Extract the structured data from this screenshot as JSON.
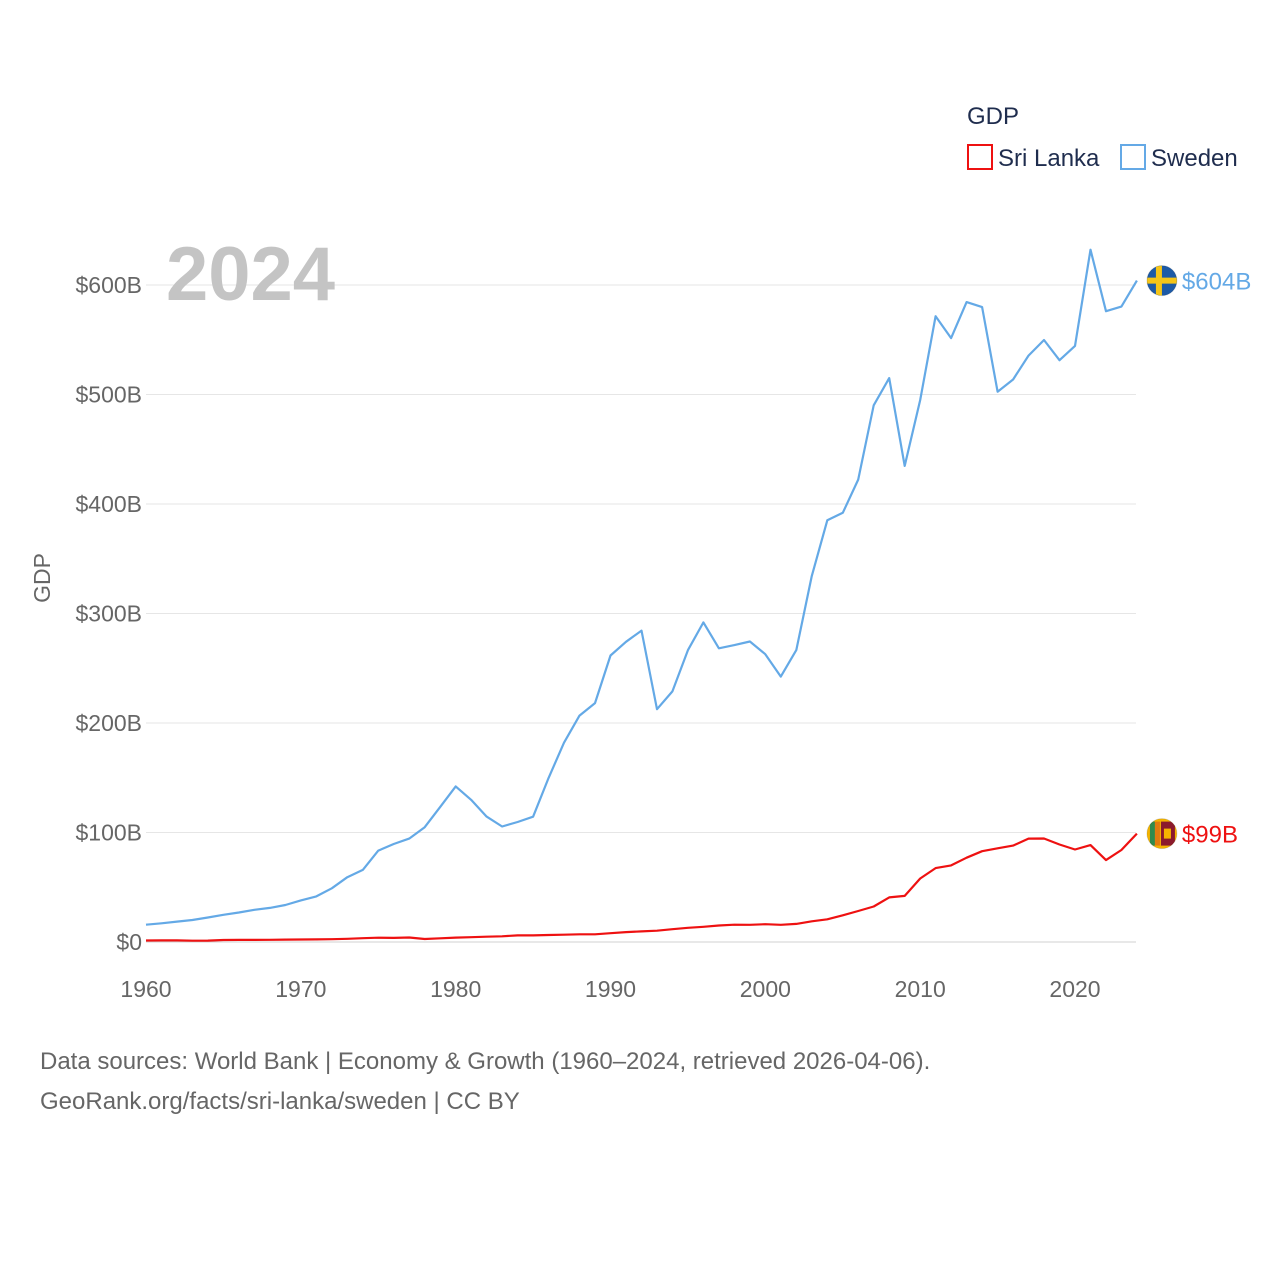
{
  "chart_data": {
    "type": "line",
    "title": "GDP",
    "ylabel": "GDP",
    "xlabel": "",
    "year_label": "2024",
    "xlim": [
      1960,
      2024
    ],
    "ylim": [
      0,
      650
    ],
    "x_ticks": [
      "1960",
      "1970",
      "1980",
      "1990",
      "2000",
      "2010",
      "2020"
    ],
    "y_ticks": [
      {
        "value": 0,
        "label": "$0"
      },
      {
        "value": 100,
        "label": "$100B"
      },
      {
        "value": 200,
        "label": "$200B"
      },
      {
        "value": 300,
        "label": "$300B"
      },
      {
        "value": 400,
        "label": "$400B"
      },
      {
        "value": 500,
        "label": "$500B"
      },
      {
        "value": 600,
        "label": "$600B"
      }
    ],
    "grid": true,
    "legend_position": "top-right",
    "x": [
      1960,
      1961,
      1962,
      1963,
      1964,
      1965,
      1966,
      1967,
      1968,
      1969,
      1970,
      1971,
      1972,
      1973,
      1974,
      1975,
      1976,
      1977,
      1978,
      1979,
      1980,
      1981,
      1982,
      1983,
      1984,
      1985,
      1986,
      1987,
      1988,
      1989,
      1990,
      1991,
      1992,
      1993,
      1994,
      1995,
      1996,
      1997,
      1998,
      1999,
      2000,
      2001,
      2002,
      2003,
      2004,
      2005,
      2006,
      2007,
      2008,
      2009,
      2010,
      2011,
      2012,
      2013,
      2014,
      2015,
      2016,
      2017,
      2018,
      2019,
      2020,
      2021,
      2022,
      2023,
      2024
    ],
    "series": [
      {
        "name": "Sri Lanka",
        "color": "#ee1111",
        "end_label": "$99B",
        "flag": "sri-lanka",
        "values": [
          1.4,
          1.5,
          1.5,
          1.2,
          1.3,
          1.8,
          1.9,
          1.9,
          2.0,
          2.2,
          2.3,
          2.4,
          2.6,
          2.9,
          3.5,
          3.9,
          3.7,
          4.1,
          2.7,
          3.4,
          4.0,
          4.4,
          4.8,
          5.2,
          6.0,
          6.0,
          6.4,
          6.7,
          7.0,
          7.0,
          8.0,
          9.0,
          9.7,
          10.3,
          11.7,
          13.0,
          13.9,
          15.1,
          15.8,
          15.7,
          16.3,
          15.7,
          16.5,
          18.9,
          20.7,
          24.4,
          28.3,
          32.4,
          40.7,
          42.1,
          58.0,
          67.5,
          70.0,
          77.0,
          82.9,
          85.6,
          88.0,
          94.4,
          94.5,
          89.0,
          84.5,
          88.5,
          74.8,
          84.0,
          99.0
        ]
      },
      {
        "name": "Sweden",
        "color": "#64a9e6",
        "end_label": "$604B",
        "flag": "sweden",
        "values": [
          15.8,
          17.1,
          18.6,
          20.1,
          22.4,
          24.8,
          26.9,
          29.4,
          31.1,
          33.8,
          38.0,
          41.6,
          49.0,
          59.2,
          65.8,
          83.5,
          89.5,
          94.4,
          104.8,
          123.4,
          142.1,
          129.9,
          114.5,
          105.5,
          109.6,
          114.4,
          149.9,
          182.0,
          206.8,
          218.2,
          261.6,
          274.2,
          284.4,
          212.6,
          228.9,
          266.5,
          291.9,
          268.2,
          271.1,
          274.4,
          262.8,
          242.4,
          266.6,
          334.3,
          385.1,
          392.0,
          422.3,
          490.1,
          515.0,
          434.8,
          495.0,
          571.5,
          551.5,
          584.4,
          579.8,
          502.6,
          513.7,
          535.5,
          549.8,
          531.3,
          544.4,
          632.2,
          576.1,
          580.3,
          604.0
        ]
      }
    ]
  },
  "legend": {
    "title": "GDP",
    "items": [
      {
        "label": "Sri Lanka",
        "color": "#ee1111"
      },
      {
        "label": "Sweden",
        "color": "#64a9e6"
      }
    ]
  },
  "source": {
    "line1": "Data sources: World Bank | Economy & Growth (1960–2024, retrieved 2026-04-06).",
    "line2": "GeoRank.org/facts/sri-lanka/sweden | CC BY"
  }
}
